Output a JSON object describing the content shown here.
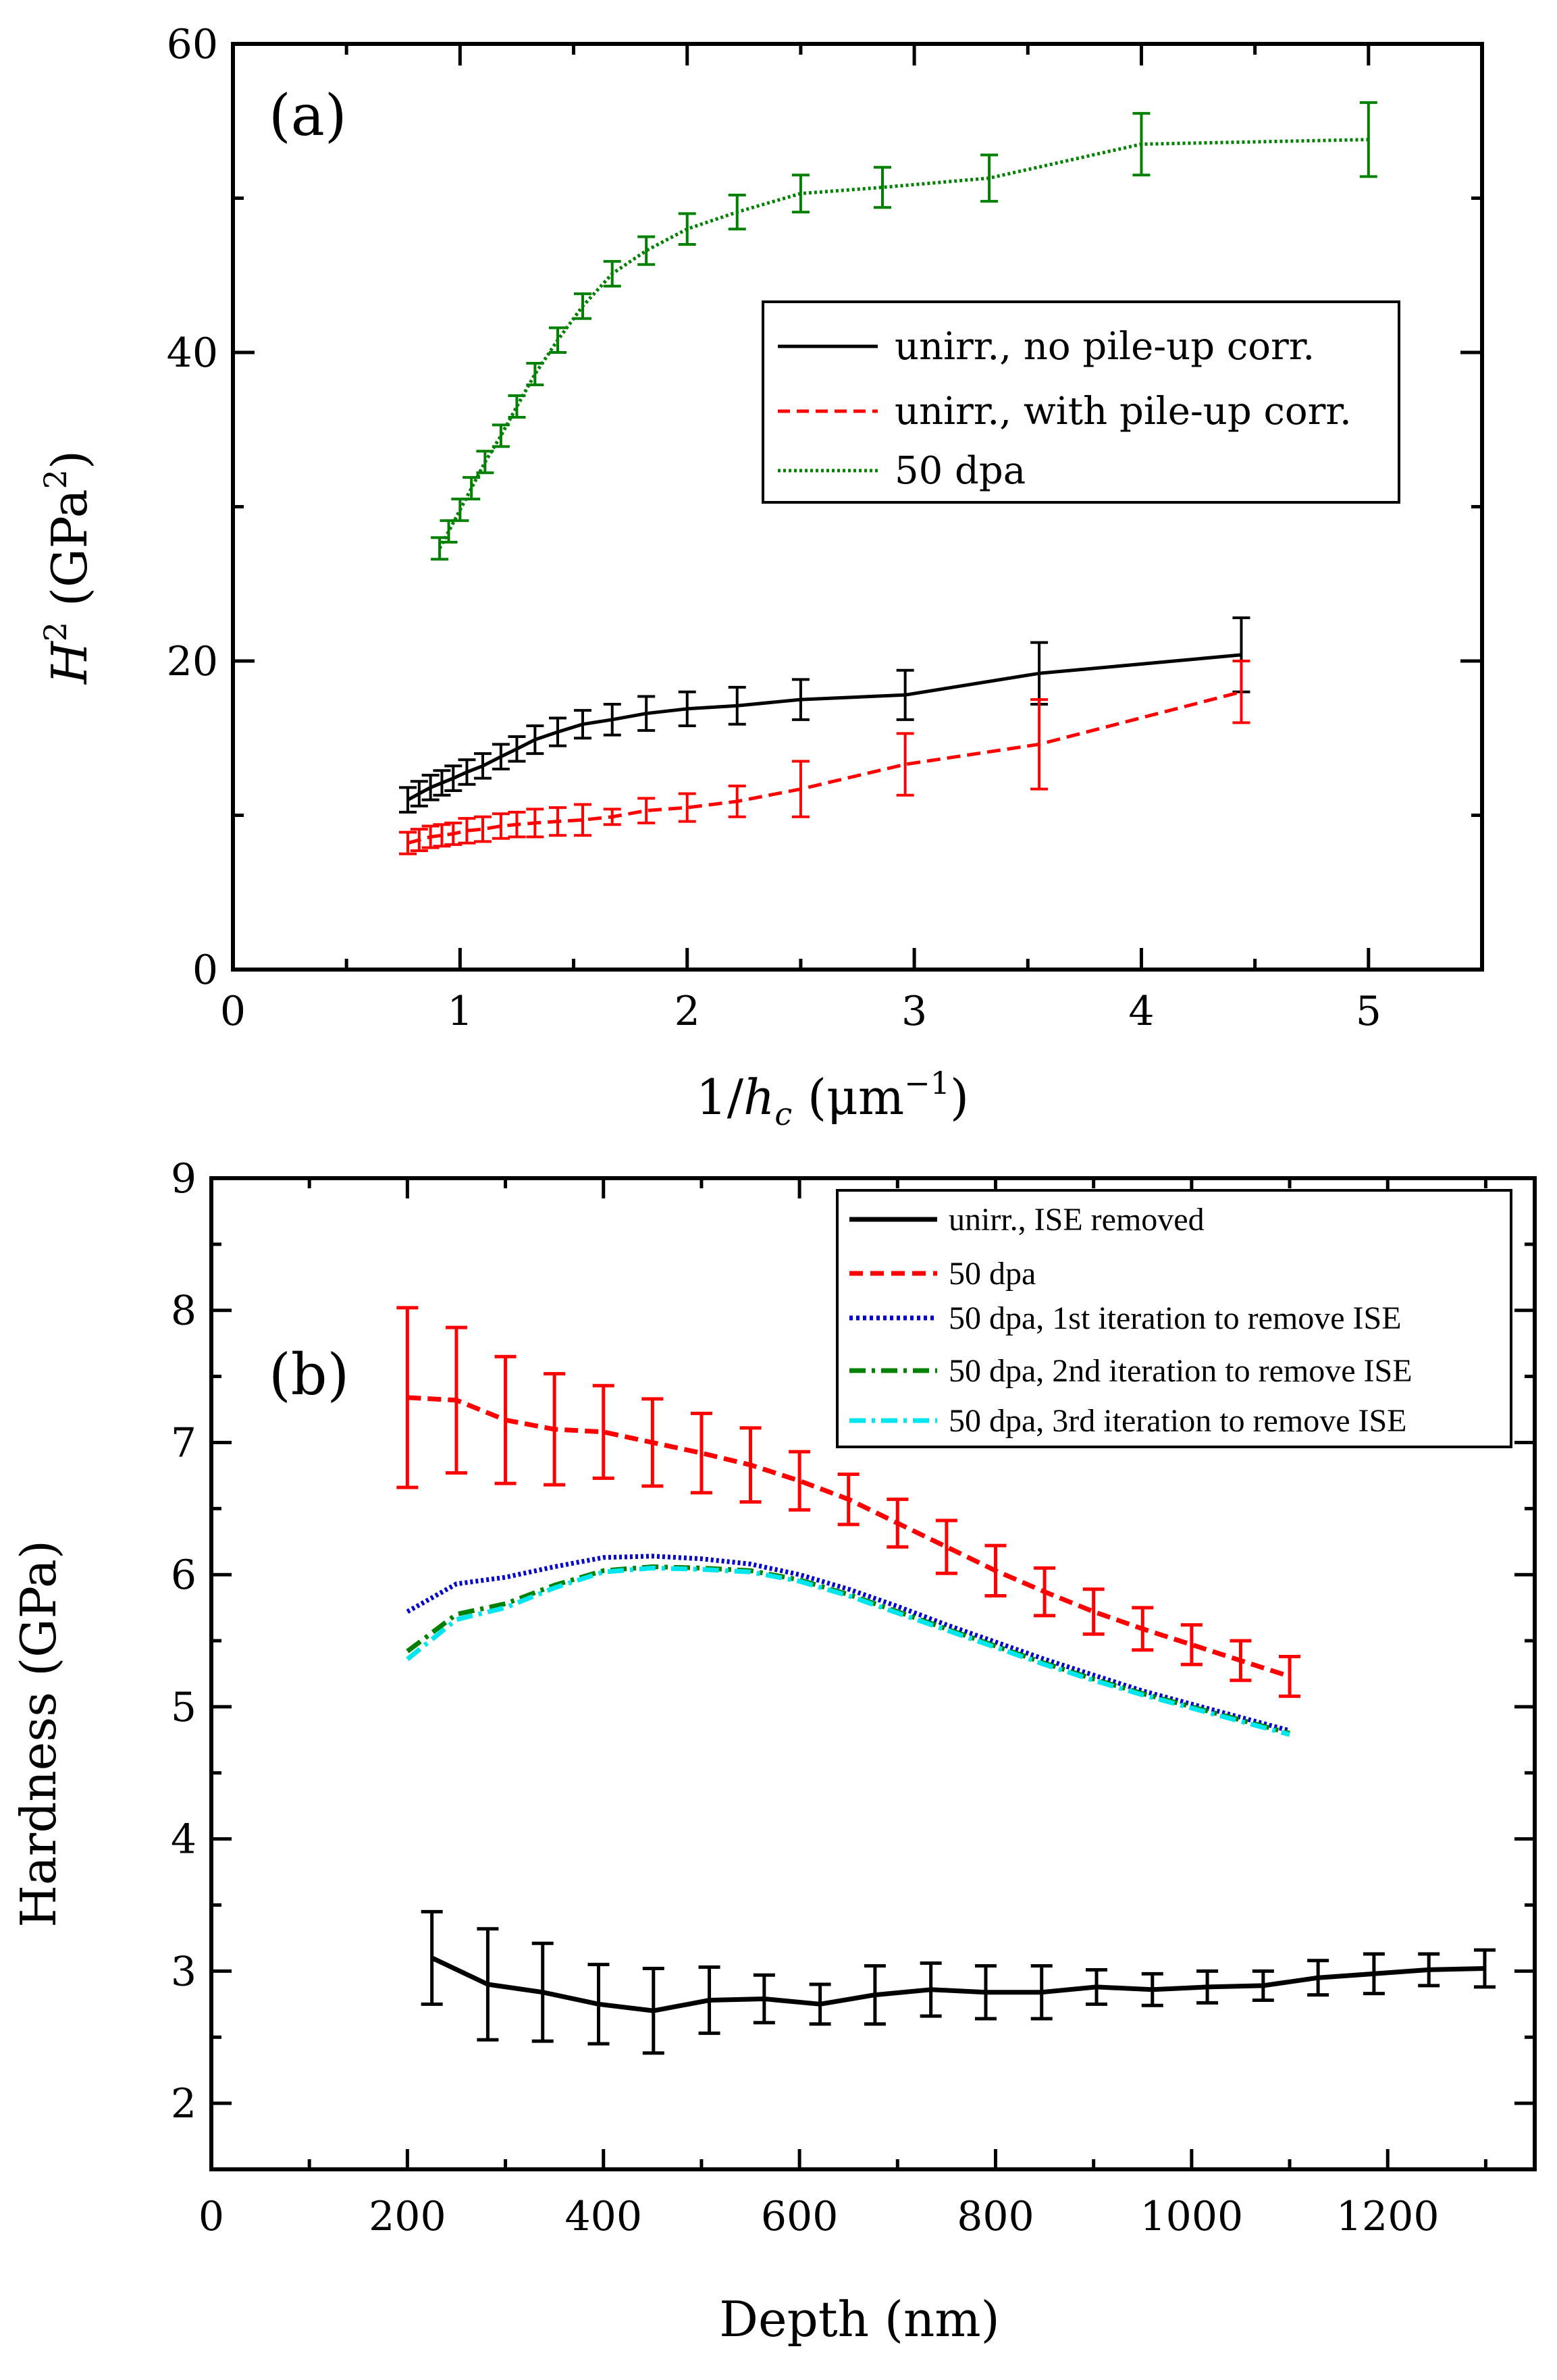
{
  "chart_data": [
    {
      "type": "line",
      "panel_label": "(a)",
      "xlabel": {
        "main": "1/",
        "var": "h",
        "sub": "c",
        "unit_open": " (μm",
        "exp": "−1",
        "unit_close": ")"
      },
      "ylabel": {
        "var": "H",
        "sup": "2",
        "unit_open": " (GPa",
        "exp": "2",
        "unit_close": ")"
      },
      "xlim": [
        0,
        5.5
      ],
      "ylim": [
        0,
        60
      ],
      "x_ticks": [
        0,
        1,
        2,
        3,
        4,
        5
      ],
      "x_tick_labels": [
        "0",
        "1",
        "2",
        "3",
        "4",
        "5"
      ],
      "y_ticks": [
        0,
        20,
        40,
        60
      ],
      "y_tick_labels": [
        "0",
        "20",
        "40",
        "60"
      ],
      "legend_position": "upper-right",
      "series": [
        {
          "name": "unirr., no pile-up corr.",
          "color": "#000000",
          "dash": "solid",
          "x": [
            0.77,
            0.82,
            0.87,
            0.92,
            0.97,
            1.03,
            1.1,
            1.18,
            1.25,
            1.33,
            1.43,
            1.54,
            1.67,
            1.82,
            2.0,
            2.22,
            2.5,
            2.96,
            3.55,
            4.44
          ],
          "y": [
            11.0,
            11.4,
            11.8,
            12.1,
            12.4,
            12.8,
            13.2,
            13.8,
            14.3,
            14.9,
            15.4,
            15.9,
            16.2,
            16.6,
            16.9,
            17.1,
            17.5,
            17.8,
            19.2,
            20.4
          ],
          "err": [
            0.8,
            0.8,
            0.8,
            0.8,
            0.8,
            0.8,
            0.8,
            0.8,
            0.8,
            0.9,
            0.9,
            0.9,
            1.0,
            1.1,
            1.1,
            1.2,
            1.3,
            1.6,
            2.0,
            2.4
          ]
        },
        {
          "name": "unirr., with pile-up corr.",
          "color": "#ff0000",
          "dash": "dashed",
          "x": [
            0.77,
            0.82,
            0.87,
            0.92,
            0.97,
            1.03,
            1.1,
            1.18,
            1.25,
            1.33,
            1.43,
            1.54,
            1.67,
            1.82,
            2.0,
            2.22,
            2.5,
            2.96,
            3.55,
            4.44
          ],
          "y": [
            8.2,
            8.4,
            8.6,
            8.7,
            8.8,
            9.0,
            9.1,
            9.3,
            9.4,
            9.5,
            9.6,
            9.7,
            9.9,
            10.3,
            10.5,
            10.9,
            11.7,
            13.3,
            14.6,
            18.0
          ],
          "err": [
            0.7,
            0.7,
            0.7,
            0.7,
            0.7,
            0.8,
            0.8,
            0.8,
            0.8,
            0.9,
            0.9,
            1.0,
            0.5,
            0.8,
            0.9,
            1.0,
            1.8,
            2.0,
            2.9,
            2.0
          ]
        },
        {
          "name": "50 dpa",
          "color": "#008000",
          "dash": "dotted",
          "x": [
            0.91,
            0.95,
            1.0,
            1.05,
            1.11,
            1.18,
            1.25,
            1.33,
            1.43,
            1.54,
            1.67,
            1.82,
            2.0,
            2.22,
            2.5,
            2.86,
            3.33,
            4.0,
            5.0
          ],
          "y": [
            27.3,
            28.4,
            29.8,
            31.2,
            32.9,
            34.6,
            36.5,
            38.6,
            40.8,
            43.0,
            45.1,
            46.6,
            48.0,
            49.1,
            50.3,
            50.7,
            51.3,
            53.5,
            53.8
          ],
          "err": [
            0.7,
            0.7,
            0.7,
            0.7,
            0.7,
            0.7,
            0.7,
            0.7,
            0.8,
            0.8,
            0.8,
            0.9,
            1.0,
            1.1,
            1.2,
            1.3,
            1.5,
            2.0,
            2.4
          ]
        }
      ]
    },
    {
      "type": "line",
      "panel_label": "(b)",
      "xlabel": "Depth (nm)",
      "ylabel": "Hardness (GPa)",
      "xlim": [
        0,
        1350
      ],
      "ylim": [
        1.5,
        9
      ],
      "x_ticks": [
        0,
        200,
        400,
        600,
        800,
        1000,
        1200
      ],
      "x_tick_labels": [
        "0",
        "200",
        "400",
        "600",
        "800",
        "1000",
        "1200"
      ],
      "y_ticks": [
        2,
        3,
        4,
        5,
        6,
        7,
        8,
        9
      ],
      "y_tick_labels": [
        "2",
        "3",
        "4",
        "5",
        "6",
        "7",
        "8",
        "9"
      ],
      "legend_position": "upper-right",
      "series": [
        {
          "name": "unirr., ISE removed",
          "color": "#000000",
          "dash": "solid",
          "x": [
            225,
            282,
            338,
            395,
            451,
            508,
            564,
            621,
            677,
            734,
            790,
            847,
            903,
            960,
            1016,
            1073,
            1129,
            1186,
            1242,
            1299
          ],
          "y": [
            3.1,
            2.9,
            2.84,
            2.75,
            2.7,
            2.78,
            2.79,
            2.75,
            2.82,
            2.86,
            2.84,
            2.84,
            2.88,
            2.86,
            2.88,
            2.89,
            2.95,
            2.98,
            3.01,
            3.02
          ],
          "err": [
            0.35,
            0.42,
            0.37,
            0.3,
            0.32,
            0.25,
            0.18,
            0.15,
            0.22,
            0.2,
            0.2,
            0.2,
            0.13,
            0.12,
            0.12,
            0.11,
            0.13,
            0.15,
            0.12,
            0.14
          ]
        },
        {
          "name": "50 dpa",
          "color": "#ff0000",
          "dash": "dashed",
          "x": [
            200,
            250,
            300,
            350,
            400,
            450,
            500,
            550,
            600,
            650,
            700,
            750,
            800,
            850,
            900,
            950,
            1000,
            1050,
            1100
          ],
          "y": [
            7.34,
            7.32,
            7.17,
            7.1,
            7.08,
            7.0,
            6.92,
            6.83,
            6.71,
            6.57,
            6.39,
            6.21,
            6.03,
            5.87,
            5.72,
            5.59,
            5.47,
            5.35,
            5.23
          ],
          "err": [
            0.68,
            0.55,
            0.48,
            0.42,
            0.35,
            0.33,
            0.3,
            0.28,
            0.22,
            0.19,
            0.18,
            0.2,
            0.19,
            0.18,
            0.17,
            0.16,
            0.15,
            0.15,
            0.15
          ]
        },
        {
          "name": "50 dpa, 1st iteration to remove ISE",
          "color": "#0000cc",
          "dash": "dotted",
          "x": [
            200,
            250,
            300,
            350,
            400,
            450,
            500,
            550,
            600,
            650,
            700,
            750,
            800,
            850,
            900,
            950,
            1000,
            1050,
            1100
          ],
          "y": [
            5.72,
            5.93,
            5.98,
            6.06,
            6.13,
            6.14,
            6.12,
            6.08,
            6.0,
            5.89,
            5.76,
            5.62,
            5.49,
            5.36,
            5.24,
            5.12,
            5.02,
            4.92,
            4.82
          ],
          "err": []
        },
        {
          "name": "50 dpa, 2nd iteration to remove ISE",
          "color": "#008000",
          "dash": "dashdot",
          "x": [
            200,
            250,
            300,
            350,
            400,
            450,
            500,
            550,
            600,
            650,
            700,
            750,
            800,
            850,
            900,
            950,
            1000,
            1050,
            1100
          ],
          "y": [
            5.42,
            5.7,
            5.78,
            5.92,
            6.03,
            6.06,
            6.05,
            6.03,
            5.96,
            5.85,
            5.72,
            5.59,
            5.46,
            5.33,
            5.21,
            5.1,
            5.0,
            4.9,
            4.8
          ],
          "err": []
        },
        {
          "name": "50 dpa, 3rd iteration to remove ISE",
          "color": "#00e5ee",
          "dash": "dashdot",
          "x": [
            200,
            250,
            300,
            350,
            400,
            450,
            500,
            550,
            600,
            650,
            700,
            750,
            800,
            850,
            900,
            950,
            1000,
            1050,
            1100
          ],
          "y": [
            5.36,
            5.66,
            5.75,
            5.9,
            6.02,
            6.05,
            6.04,
            6.02,
            5.95,
            5.84,
            5.71,
            5.58,
            5.45,
            5.32,
            5.2,
            5.09,
            4.99,
            4.89,
            4.79
          ],
          "err": []
        }
      ]
    }
  ]
}
